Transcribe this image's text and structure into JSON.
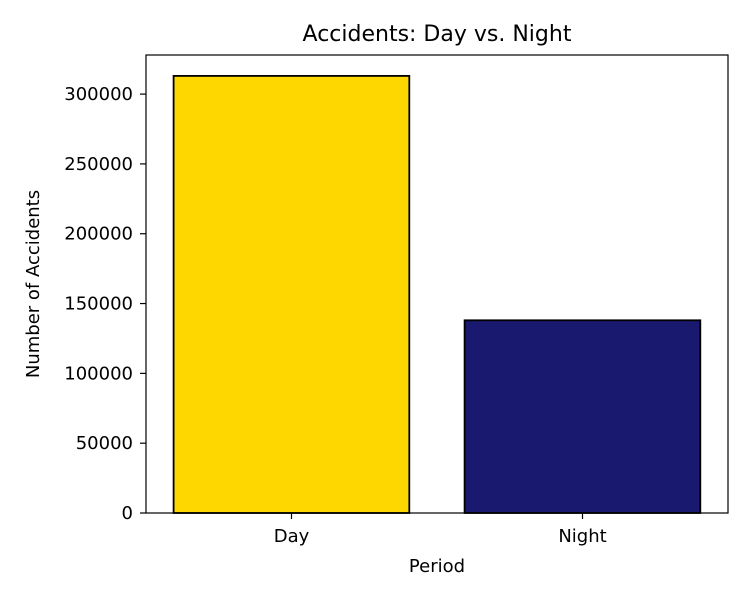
{
  "chart_data": {
    "type": "bar",
    "title": "Accidents: Day vs. Night",
    "xlabel": "Period",
    "ylabel": "Number of Accidents",
    "categories": [
      "Day",
      "Night"
    ],
    "values": [
      313000,
      138000
    ],
    "colors": [
      "#ffd700",
      "#191970"
    ],
    "ylim": [
      0,
      328000
    ],
    "yticks": [
      0,
      50000,
      100000,
      150000,
      200000,
      250000,
      300000
    ],
    "grid": false
  }
}
